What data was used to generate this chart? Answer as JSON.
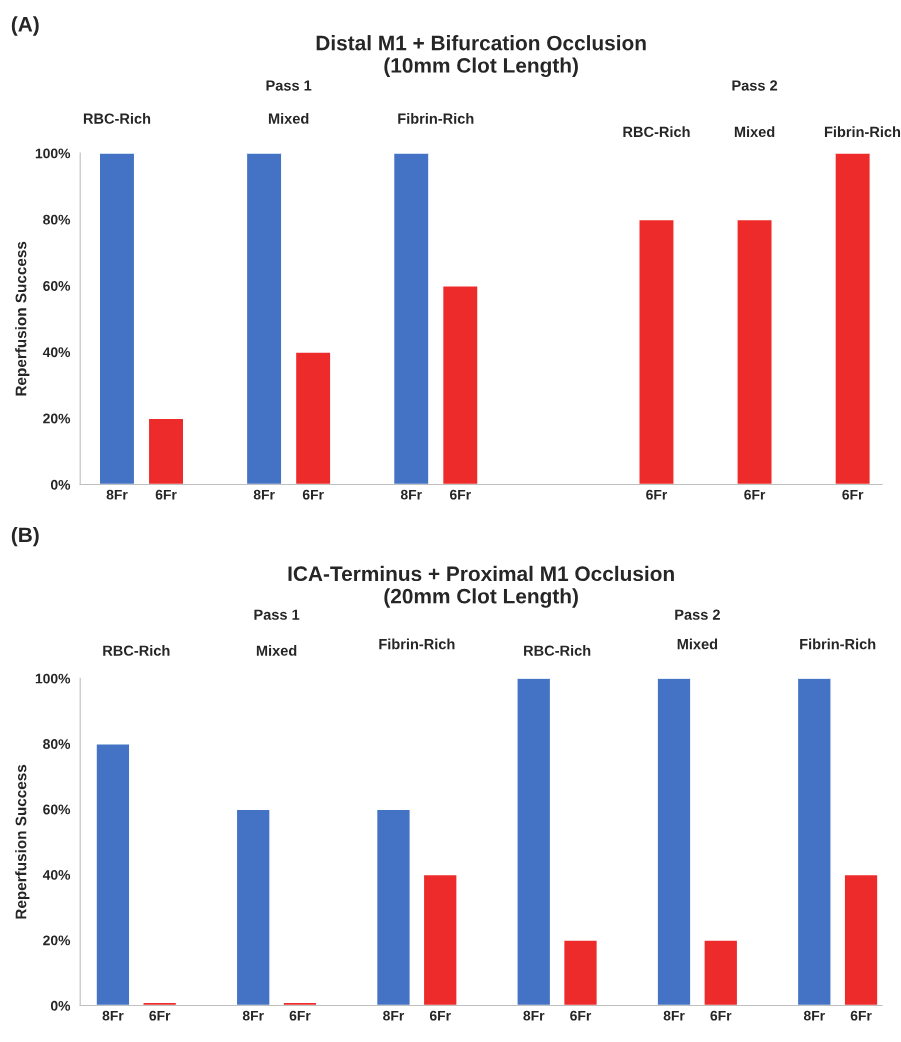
{
  "chart_data": [
    {
      "type": "bar",
      "title": "Distal M1 + Bifurcation Occlusion\n(10mm Clot Length)",
      "ylabel": "Reperfusion Success",
      "categories": [
        "8Fr",
        "6Fr",
        null,
        "8Fr",
        "6Fr",
        null,
        "8Fr",
        "6Fr",
        null,
        null,
        null,
        "6Fr",
        null,
        "6Fr",
        null,
        "6Fr"
      ],
      "values": [
        100,
        20,
        null,
        100,
        40,
        null,
        100,
        60,
        null,
        null,
        null,
        80,
        null,
        80,
        null,
        100
      ],
      "colors": [
        "#4472c4",
        "#ee2b2b",
        null,
        "#4472c4",
        "#ee2b2b",
        null,
        "#4472c4",
        "#ee2b2b",
        null,
        null,
        null,
        "#ee2b2b",
        null,
        "#ee2b2b",
        null,
        "#ee2b2b"
      ],
      "ylim": [
        0,
        100
      ],
      "yticks": [
        {
          "value": 0,
          "label": "0%"
        },
        {
          "value": 20,
          "label": "20%"
        },
        {
          "value": 40,
          "label": "40%"
        },
        {
          "value": 60,
          "label": "60%"
        },
        {
          "value": 80,
          "label": "80%"
        },
        {
          "value": 100,
          "label": "100%"
        }
      ],
      "grid": false,
      "legend": false,
      "annotations": [
        "(A)",
        "RBC-Rich",
        "Pass 1",
        "Mixed",
        "Fibrin-Rich",
        "Pass 2",
        "RBC-Rich",
        "Mixed",
        "Fibrin-Rich"
      ]
    },
    {
      "type": "bar",
      "title": "ICA-Terminus + Proximal M1 Occlusion\n(20mm Clot Length)",
      "ylabel": "Reperfusion Success",
      "categories": [
        "8Fr",
        "6Fr",
        null,
        "8Fr",
        "6Fr",
        null,
        "8Fr",
        "6Fr",
        null,
        "8Fr",
        "6Fr",
        null,
        "8Fr",
        "6Fr",
        null,
        "8Fr",
        "6Fr"
      ],
      "values": [
        80,
        1,
        null,
        60,
        1,
        null,
        60,
        40,
        null,
        100,
        20,
        null,
        100,
        20,
        null,
        100,
        40
      ],
      "colors": [
        "#4472c4",
        "#ee2b2b",
        null,
        "#4472c4",
        "#ee2b2b",
        null,
        "#4472c4",
        "#ee2b2b",
        null,
        "#4472c4",
        "#ee2b2b",
        null,
        "#4472c4",
        "#ee2b2b",
        null,
        "#4472c4",
        "#ee2b2b"
      ],
      "ylim": [
        0,
        100
      ],
      "yticks": [
        {
          "value": 0,
          "label": "0%"
        },
        {
          "value": 20,
          "label": "20%"
        },
        {
          "value": 40,
          "label": "40%"
        },
        {
          "value": 60,
          "label": "60%"
        },
        {
          "value": 80,
          "label": "80%"
        },
        {
          "value": 100,
          "label": "100%"
        }
      ],
      "grid": false,
      "legend": false,
      "annotations": [
        "(B)",
        "RBC-Rich",
        "Pass 1",
        "Mixed",
        "Fibrin-Rich",
        "RBC-Rich",
        "Pass 2",
        "Mixed",
        "Fibrin-Rich"
      ]
    }
  ]
}
